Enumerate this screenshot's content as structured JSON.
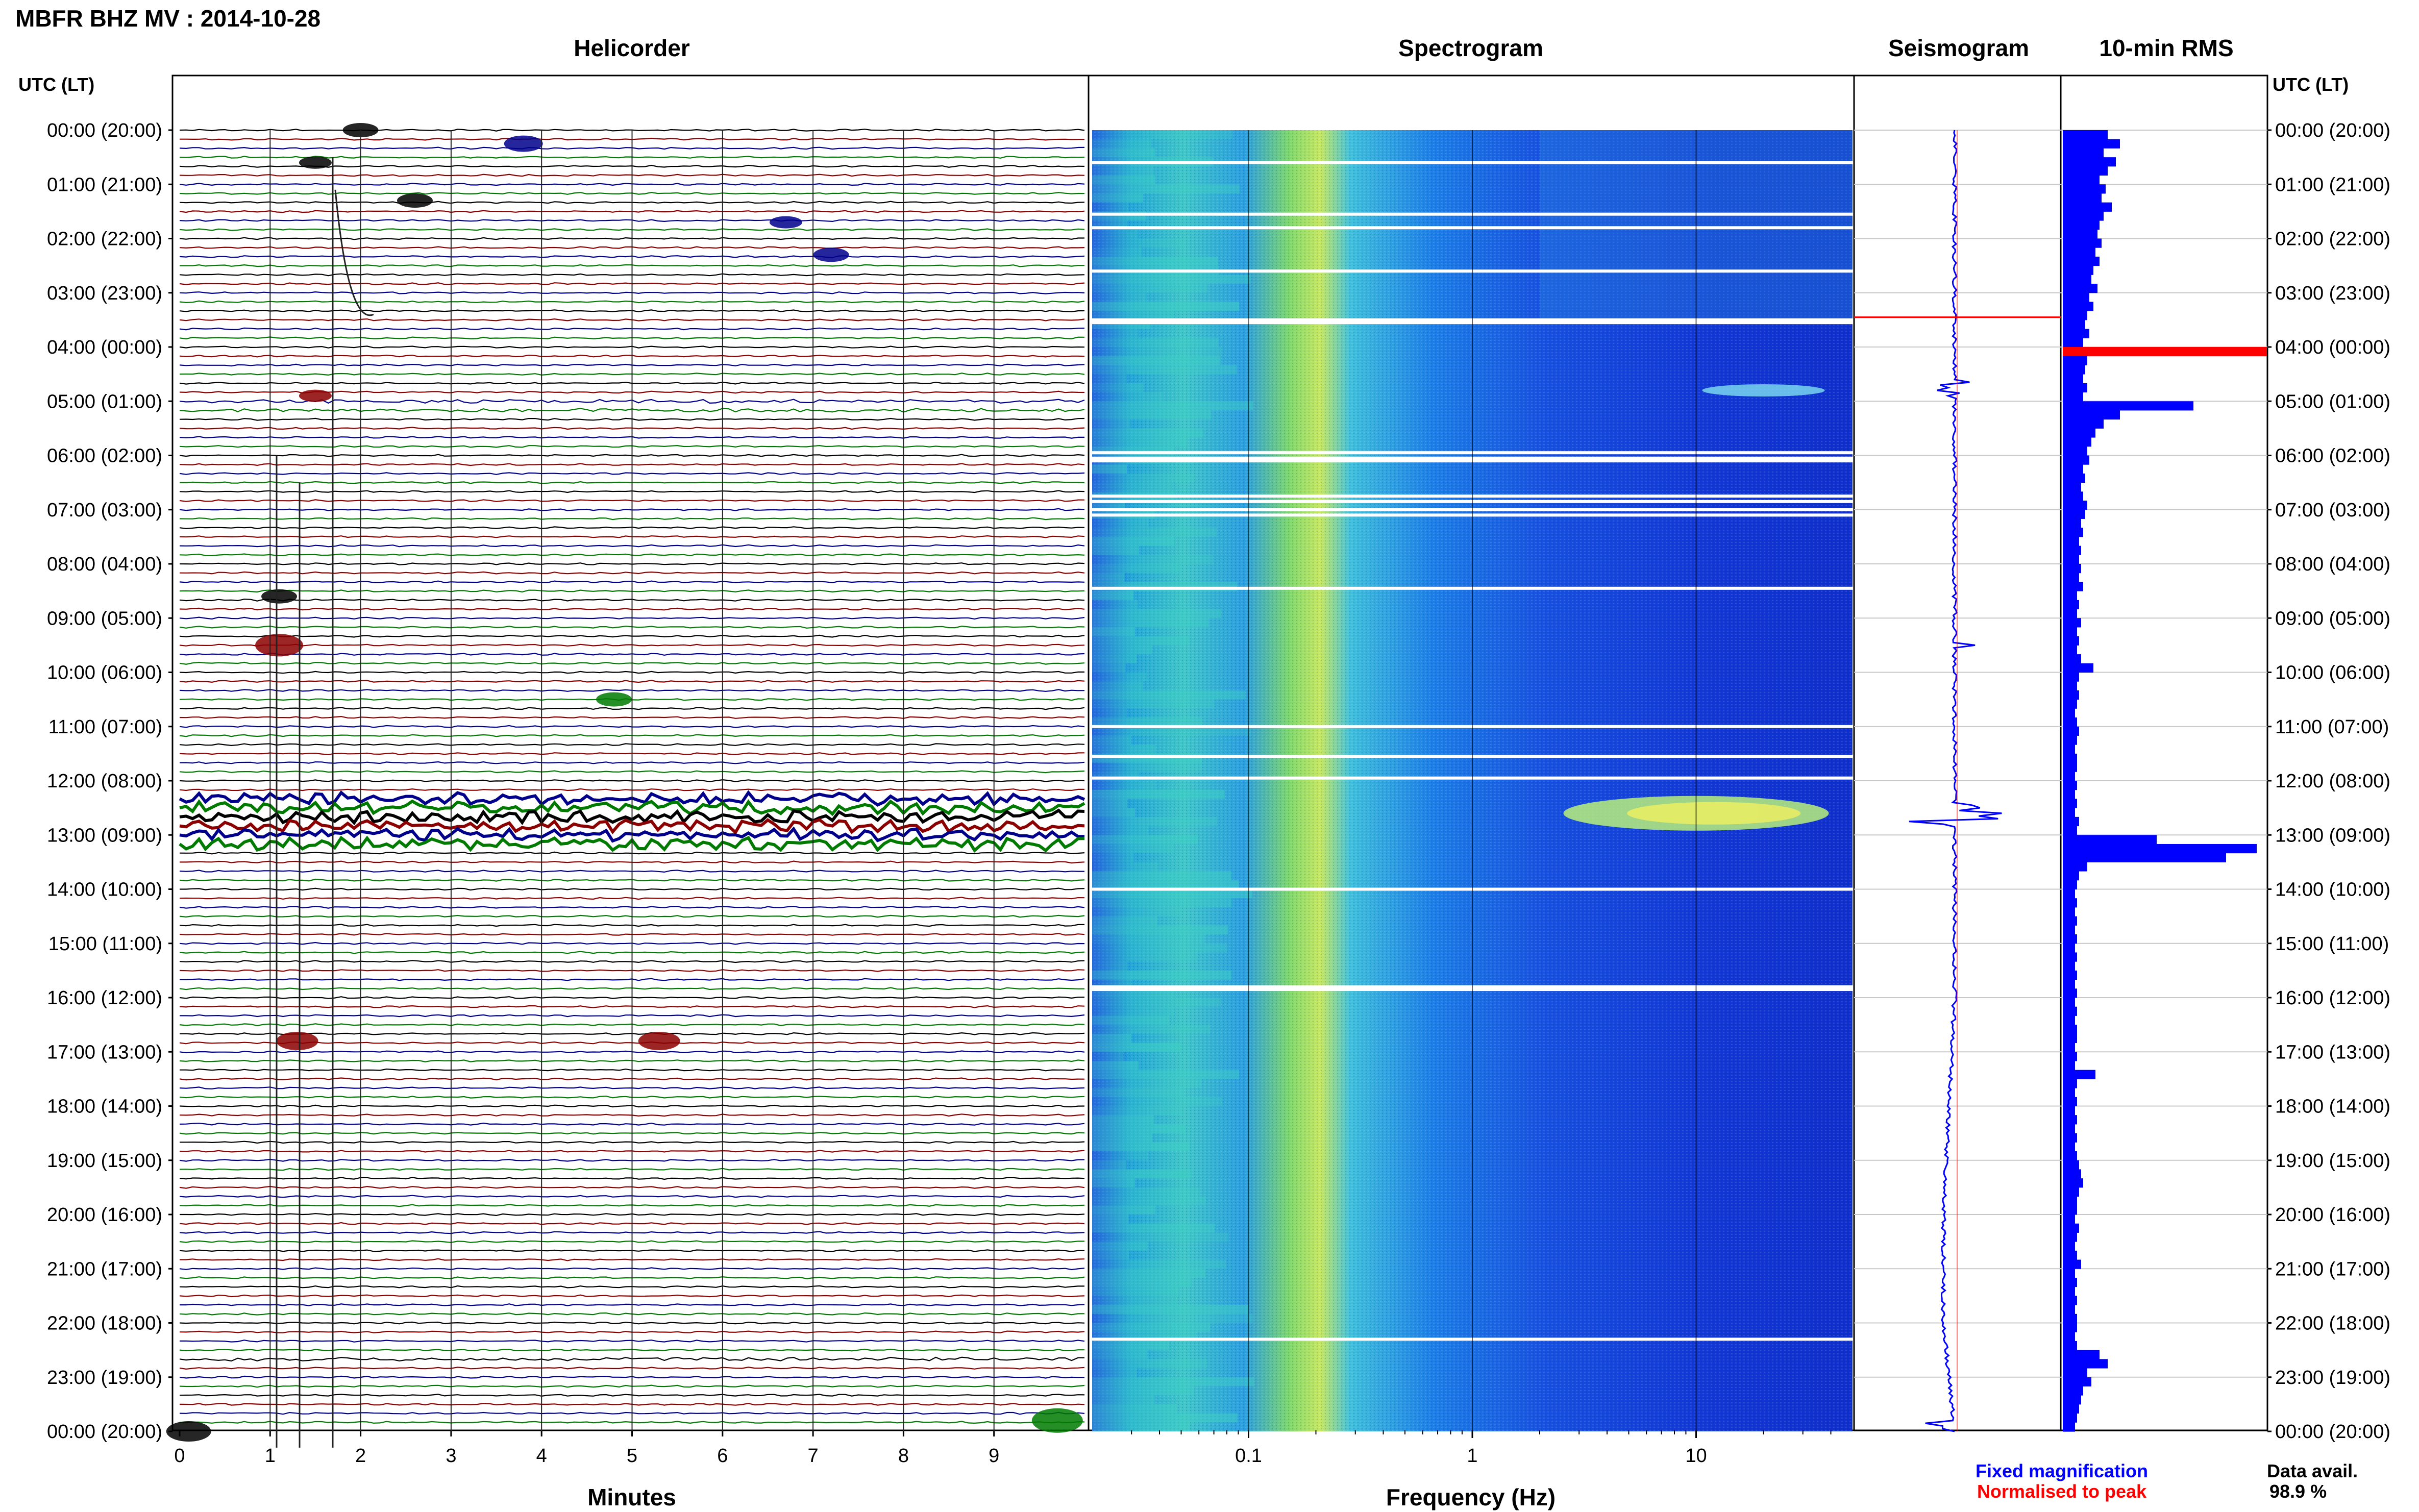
{
  "header": {
    "title": "MBFR BHZ MV : 2014-10-28",
    "utc_label": "UTC (LT)",
    "utc_label_right": "UTC (LT)"
  },
  "panels": {
    "helicorder": "Helicorder",
    "spectrogram": "Spectrogram",
    "seismogram": "Seismogram",
    "rms": "10-min RMS"
  },
  "time_labels": [
    "00:00 (20:00)",
    "01:00 (21:00)",
    "02:00 (22:00)",
    "03:00 (23:00)",
    "04:00 (00:00)",
    "05:00 (01:00)",
    "06:00 (02:00)",
    "07:00 (03:00)",
    "08:00 (04:00)",
    "09:00 (05:00)",
    "10:00 (06:00)",
    "11:00 (07:00)",
    "12:00 (08:00)",
    "13:00 (09:00)",
    "14:00 (10:00)",
    "15:00 (11:00)",
    "16:00 (12:00)",
    "17:00 (13:00)",
    "18:00 (14:00)",
    "19:00 (15:00)",
    "20:00 (16:00)",
    "21:00 (17:00)",
    "22:00 (18:00)",
    "23:00 (19:00)",
    "00:00 (20:00)"
  ],
  "helicorder_axis": {
    "ticks": [
      "0",
      "1",
      "2",
      "3",
      "4",
      "5",
      "6",
      "7",
      "8",
      "9"
    ],
    "label": "Minutes"
  },
  "spectrogram_axis": {
    "ticks": [
      "0.1",
      "1",
      "10"
    ],
    "label": "Frequency (Hz)"
  },
  "legend": {
    "fixed": "Fixed magnification",
    "normalised": "Normalised to peak",
    "fixed_color": "#0000ff",
    "normalised_color": "#ff0000"
  },
  "availability": {
    "label": "Data avail.",
    "value": "98.9 %"
  },
  "colors": {
    "trace_colors": [
      "#000000",
      "#8b0000",
      "#00008b",
      "#007a00"
    ],
    "rms_bar": "#0000ff",
    "rms_peak": "#ff0000",
    "spectrogram_base": "#0a2fd6"
  },
  "chart_data": {
    "type": "bar",
    "title": "10-min RMS",
    "x_unit": "hours UTC",
    "rms_relative": [
      0.22,
      0.28,
      0.2,
      0.26,
      0.22,
      0.18,
      0.21,
      0.19,
      0.24,
      0.2,
      0.18,
      0.17,
      0.19,
      0.16,
      0.18,
      0.15,
      0.14,
      0.17,
      0.13,
      0.15,
      0.12,
      0.11,
      0.13,
      0.1,
      1.0,
      0.12,
      0.11,
      0.1,
      0.12,
      0.1,
      0.64,
      0.28,
      0.2,
      0.16,
      0.14,
      0.12,
      0.13,
      0.1,
      0.11,
      0.09,
      0.1,
      0.12,
      0.11,
      0.09,
      0.1,
      0.08,
      0.09,
      0.08,
      0.09,
      0.08,
      0.1,
      0.07,
      0.08,
      0.07,
      0.09,
      0.07,
      0.08,
      0.07,
      0.09,
      0.15,
      0.08,
      0.07,
      0.08,
      0.07,
      0.06,
      0.07,
      0.08,
      0.07,
      0.06,
      0.07,
      0.07,
      0.06,
      0.07,
      0.06,
      0.07,
      0.06,
      0.08,
      0.07,
      0.46,
      0.95,
      0.8,
      0.12,
      0.08,
      0.07,
      0.06,
      0.07,
      0.06,
      0.07,
      0.06,
      0.07,
      0.06,
      0.07,
      0.06,
      0.07,
      0.06,
      0.07,
      0.06,
      0.07,
      0.06,
      0.07,
      0.07,
      0.06,
      0.07,
      0.06,
      0.16,
      0.07,
      0.06,
      0.07,
      0.06,
      0.07,
      0.06,
      0.07,
      0.06,
      0.07,
      0.08,
      0.09,
      0.1,
      0.08,
      0.07,
      0.07,
      0.06,
      0.08,
      0.07,
      0.06,
      0.07,
      0.09,
      0.06,
      0.07,
      0.06,
      0.07,
      0.06,
      0.07,
      0.07,
      0.06,
      0.07,
      0.18,
      0.22,
      0.12,
      0.14,
      0.1,
      0.09,
      0.08,
      0.07,
      0.06
    ],
    "helicorder_events": [
      {
        "hour": 0.0,
        "minute": 2.0,
        "strength": 0.5
      },
      {
        "hour": 0.25,
        "minute": 3.8,
        "strength": 0.6
      },
      {
        "hour": 0.6,
        "minute": 1.5,
        "strength": 0.4
      },
      {
        "hour": 1.3,
        "minute": 2.6,
        "strength": 0.5
      },
      {
        "hour": 1.7,
        "minute": 6.7,
        "strength": 0.4
      },
      {
        "hour": 2.3,
        "minute": 7.2,
        "strength": 0.5
      },
      {
        "hour": 4.9,
        "minute": 1.5,
        "strength": 0.4
      },
      {
        "hour": 8.6,
        "minute": 1.1,
        "strength": 0.5
      },
      {
        "hour": 9.5,
        "minute": 1.1,
        "strength": 0.9
      },
      {
        "hour": 10.5,
        "minute": 4.8,
        "strength": 0.5
      },
      {
        "hour": 16.8,
        "minute": 1.3,
        "strength": 0.7
      },
      {
        "hour": 16.8,
        "minute": 5.3,
        "strength": 0.7
      },
      {
        "hour": 24.0,
        "minute": 0.1,
        "strength": 0.8
      },
      {
        "hour": 23.8,
        "minute": 9.7,
        "strength": 1.0
      }
    ]
  }
}
